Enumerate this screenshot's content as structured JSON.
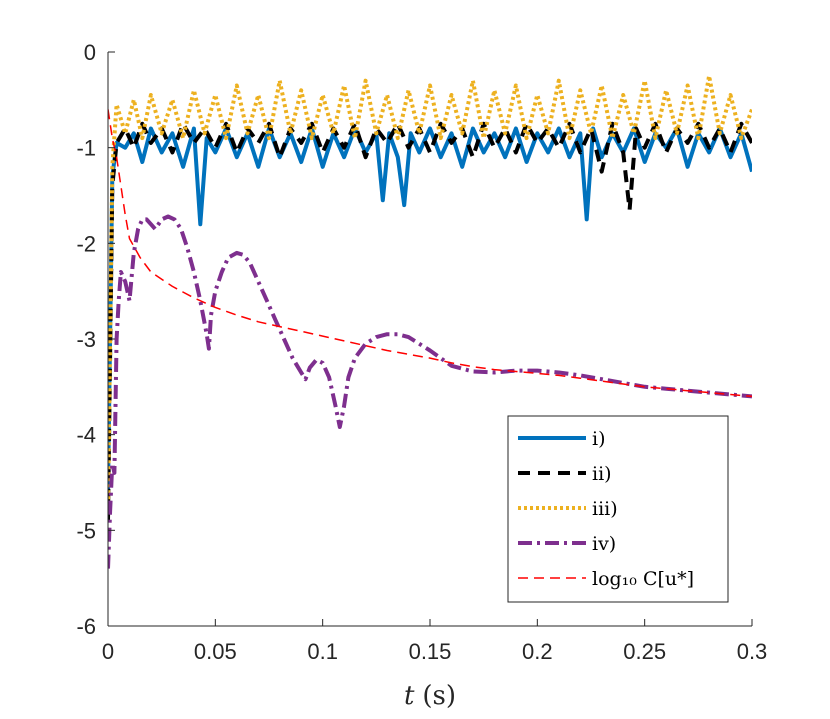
{
  "chart_data": {
    "type": "line",
    "title": "",
    "xlabel_italic": "t",
    "xlabel_unit": "(s)",
    "ylabel": "",
    "xlim": [
      0,
      0.3
    ],
    "ylim": [
      -6,
      0
    ],
    "xticks": [
      0,
      0.05,
      0.1,
      0.15,
      0.2,
      0.25,
      0.3
    ],
    "xtick_labels": [
      "0",
      "0.05",
      "0.1",
      "0.15",
      "0.2",
      "0.25",
      "0.3"
    ],
    "yticks": [
      0,
      -1,
      -2,
      -3,
      -4,
      -5,
      -6
    ],
    "ytick_labels": [
      "0",
      "-1",
      "-2",
      "-3",
      "-4",
      "-5",
      "-6"
    ],
    "grid": false,
    "legend_position": "bottom-right",
    "series": [
      {
        "name": "i)",
        "color": "#0072BD",
        "style": "solid",
        "x": [
          0,
          0.002,
          0.004,
          0.008,
          0.012,
          0.016,
          0.02,
          0.025,
          0.03,
          0.035,
          0.04,
          0.043,
          0.046,
          0.05,
          0.055,
          0.06,
          0.065,
          0.07,
          0.075,
          0.08,
          0.085,
          0.09,
          0.095,
          0.1,
          0.105,
          0.11,
          0.115,
          0.12,
          0.125,
          0.128,
          0.131,
          0.135,
          0.138,
          0.141,
          0.145,
          0.15,
          0.155,
          0.16,
          0.165,
          0.17,
          0.175,
          0.18,
          0.185,
          0.19,
          0.195,
          0.2,
          0.205,
          0.21,
          0.215,
          0.22,
          0.223,
          0.226,
          0.23,
          0.235,
          0.24,
          0.245,
          0.25,
          0.255,
          0.26,
          0.265,
          0.27,
          0.275,
          0.28,
          0.285,
          0.29,
          0.295,
          0.3
        ],
        "values": [
          -4.6,
          -1.3,
          -0.95,
          -1.0,
          -0.85,
          -1.15,
          -0.8,
          -1.05,
          -0.85,
          -1.2,
          -0.8,
          -1.8,
          -0.9,
          -1.05,
          -0.8,
          -1.1,
          -0.85,
          -1.2,
          -0.8,
          -1.1,
          -0.85,
          -1.15,
          -0.8,
          -1.2,
          -0.85,
          -1.1,
          -0.8,
          -1.05,
          -0.85,
          -1.55,
          -0.85,
          -1.1,
          -1.6,
          -0.85,
          -1.05,
          -0.8,
          -1.1,
          -0.85,
          -1.2,
          -0.8,
          -1.05,
          -0.85,
          -1.1,
          -0.8,
          -1.15,
          -0.85,
          -1.05,
          -0.8,
          -1.1,
          -0.85,
          -1.75,
          -0.8,
          -1.1,
          -0.85,
          -1.05,
          -0.8,
          -1.15,
          -0.85,
          -1.0,
          -0.8,
          -1.2,
          -0.85,
          -1.05,
          -0.8,
          -1.1,
          -0.85,
          -1.25
        ]
      },
      {
        "name": "ii)",
        "color": "#000000",
        "style": "dashed",
        "x": [
          0,
          0.002,
          0.004,
          0.008,
          0.012,
          0.016,
          0.02,
          0.025,
          0.03,
          0.035,
          0.04,
          0.045,
          0.05,
          0.055,
          0.06,
          0.065,
          0.07,
          0.075,
          0.08,
          0.085,
          0.09,
          0.095,
          0.1,
          0.105,
          0.11,
          0.115,
          0.12,
          0.125,
          0.13,
          0.135,
          0.14,
          0.145,
          0.15,
          0.155,
          0.16,
          0.165,
          0.17,
          0.175,
          0.18,
          0.185,
          0.19,
          0.195,
          0.2,
          0.205,
          0.21,
          0.215,
          0.22,
          0.225,
          0.23,
          0.235,
          0.24,
          0.243,
          0.246,
          0.25,
          0.255,
          0.26,
          0.265,
          0.27,
          0.275,
          0.28,
          0.285,
          0.29,
          0.295,
          0.3
        ],
        "values": [
          -4.9,
          -1.4,
          -0.95,
          -0.8,
          -1.0,
          -0.75,
          -0.95,
          -0.8,
          -1.05,
          -0.75,
          -0.95,
          -0.8,
          -1.0,
          -0.75,
          -1.05,
          -0.8,
          -0.95,
          -0.75,
          -1.1,
          -0.8,
          -0.95,
          -0.75,
          -1.05,
          -0.8,
          -1.0,
          -0.75,
          -1.1,
          -0.8,
          -0.95,
          -0.75,
          -1.0,
          -0.8,
          -1.05,
          -0.75,
          -0.95,
          -0.8,
          -1.1,
          -0.75,
          -1.0,
          -0.8,
          -1.05,
          -0.75,
          -0.95,
          -0.8,
          -1.0,
          -0.75,
          -1.05,
          -0.8,
          -1.25,
          -0.75,
          -1.05,
          -1.65,
          -0.8,
          -1.0,
          -0.75,
          -1.05,
          -0.8,
          -0.95,
          -0.75,
          -1.0,
          -0.8,
          -1.05,
          -0.75,
          -0.95
        ]
      },
      {
        "name": "iii)",
        "color": "#EDB120",
        "style": "dotted",
        "x": [
          0,
          0.002,
          0.004,
          0.008,
          0.012,
          0.016,
          0.02,
          0.025,
          0.03,
          0.035,
          0.04,
          0.045,
          0.05,
          0.055,
          0.06,
          0.065,
          0.07,
          0.075,
          0.08,
          0.085,
          0.09,
          0.095,
          0.1,
          0.105,
          0.11,
          0.115,
          0.12,
          0.125,
          0.13,
          0.135,
          0.14,
          0.145,
          0.15,
          0.155,
          0.16,
          0.165,
          0.17,
          0.175,
          0.18,
          0.185,
          0.19,
          0.195,
          0.2,
          0.205,
          0.21,
          0.215,
          0.22,
          0.225,
          0.23,
          0.235,
          0.24,
          0.245,
          0.25,
          0.255,
          0.26,
          0.265,
          0.27,
          0.275,
          0.28,
          0.285,
          0.29,
          0.295,
          0.3
        ],
        "values": [
          -4.8,
          -1.2,
          -0.55,
          -0.85,
          -0.5,
          -0.9,
          -0.45,
          -0.85,
          -0.5,
          -0.9,
          -0.4,
          -0.85,
          -0.45,
          -0.9,
          -0.35,
          -0.85,
          -0.45,
          -0.9,
          -0.3,
          -0.85,
          -0.4,
          -0.9,
          -0.45,
          -0.85,
          -0.35,
          -0.9,
          -0.3,
          -0.85,
          -0.45,
          -0.9,
          -0.4,
          -0.85,
          -0.35,
          -0.9,
          -0.45,
          -0.85,
          -0.3,
          -0.9,
          -0.4,
          -0.85,
          -0.35,
          -0.9,
          -0.45,
          -0.85,
          -0.3,
          -0.9,
          -0.4,
          -0.85,
          -0.35,
          -0.9,
          -0.45,
          -0.85,
          -0.3,
          -0.9,
          -0.4,
          -0.85,
          -0.35,
          -0.9,
          -0.25,
          -0.85,
          -0.45,
          -0.9,
          -0.6
        ]
      },
      {
        "name": "iv)",
        "color": "#7E2F8E",
        "style": "dashdot",
        "x": [
          0,
          0.001,
          0.002,
          0.003,
          0.004,
          0.005,
          0.006,
          0.008,
          0.01,
          0.012,
          0.014,
          0.016,
          0.018,
          0.02,
          0.022,
          0.025,
          0.028,
          0.031,
          0.034,
          0.037,
          0.04,
          0.043,
          0.046,
          0.047,
          0.048,
          0.05,
          0.053,
          0.056,
          0.06,
          0.063,
          0.066,
          0.07,
          0.074,
          0.078,
          0.082,
          0.086,
          0.09,
          0.092,
          0.094,
          0.097,
          0.1,
          0.103,
          0.106,
          0.108,
          0.11,
          0.112,
          0.115,
          0.12,
          0.125,
          0.13,
          0.135,
          0.14,
          0.145,
          0.15,
          0.155,
          0.16,
          0.17,
          0.18,
          0.19,
          0.2,
          0.21,
          0.22,
          0.23,
          0.24,
          0.25,
          0.26,
          0.27,
          0.28,
          0.29,
          0.3
        ],
        "values": [
          -5.4,
          -4.8,
          -4.3,
          -4.4,
          -3.0,
          -2.6,
          -2.3,
          -2.4,
          -2.6,
          -2.1,
          -1.85,
          -1.75,
          -1.75,
          -1.8,
          -1.85,
          -1.75,
          -1.72,
          -1.75,
          -1.85,
          -2.05,
          -2.3,
          -2.6,
          -2.95,
          -3.1,
          -2.75,
          -2.5,
          -2.3,
          -2.15,
          -2.1,
          -2.12,
          -2.2,
          -2.4,
          -2.6,
          -2.8,
          -3.0,
          -3.2,
          -3.35,
          -3.42,
          -3.3,
          -3.22,
          -3.25,
          -3.4,
          -3.7,
          -3.92,
          -3.7,
          -3.4,
          -3.2,
          -3.05,
          -2.98,
          -2.95,
          -2.95,
          -2.98,
          -3.05,
          -3.12,
          -3.2,
          -3.28,
          -3.34,
          -3.35,
          -3.33,
          -3.33,
          -3.35,
          -3.38,
          -3.42,
          -3.46,
          -3.5,
          -3.52,
          -3.54,
          -3.56,
          -3.58,
          -3.6
        ]
      },
      {
        "name": "log₁₀ C[u*]",
        "color": "#FF0000",
        "style": "dashed-thin",
        "x": [
          0,
          0.002,
          0.004,
          0.006,
          0.008,
          0.01,
          0.015,
          0.02,
          0.03,
          0.04,
          0.05,
          0.06,
          0.07,
          0.08,
          0.09,
          0.1,
          0.11,
          0.12,
          0.13,
          0.14,
          0.15,
          0.16,
          0.17,
          0.18,
          0.19,
          0.2,
          0.21,
          0.22,
          0.23,
          0.24,
          0.25,
          0.26,
          0.27,
          0.28,
          0.29,
          0.3
        ],
        "values": [
          -0.6,
          -0.9,
          -1.1,
          -1.4,
          -1.7,
          -1.95,
          -2.15,
          -2.3,
          -2.45,
          -2.57,
          -2.67,
          -2.75,
          -2.82,
          -2.87,
          -2.92,
          -2.97,
          -3.02,
          -3.07,
          -3.12,
          -3.16,
          -3.2,
          -3.25,
          -3.29,
          -3.32,
          -3.34,
          -3.36,
          -3.38,
          -3.41,
          -3.44,
          -3.47,
          -3.5,
          -3.52,
          -3.54,
          -3.56,
          -3.58,
          -3.6
        ]
      }
    ]
  }
}
